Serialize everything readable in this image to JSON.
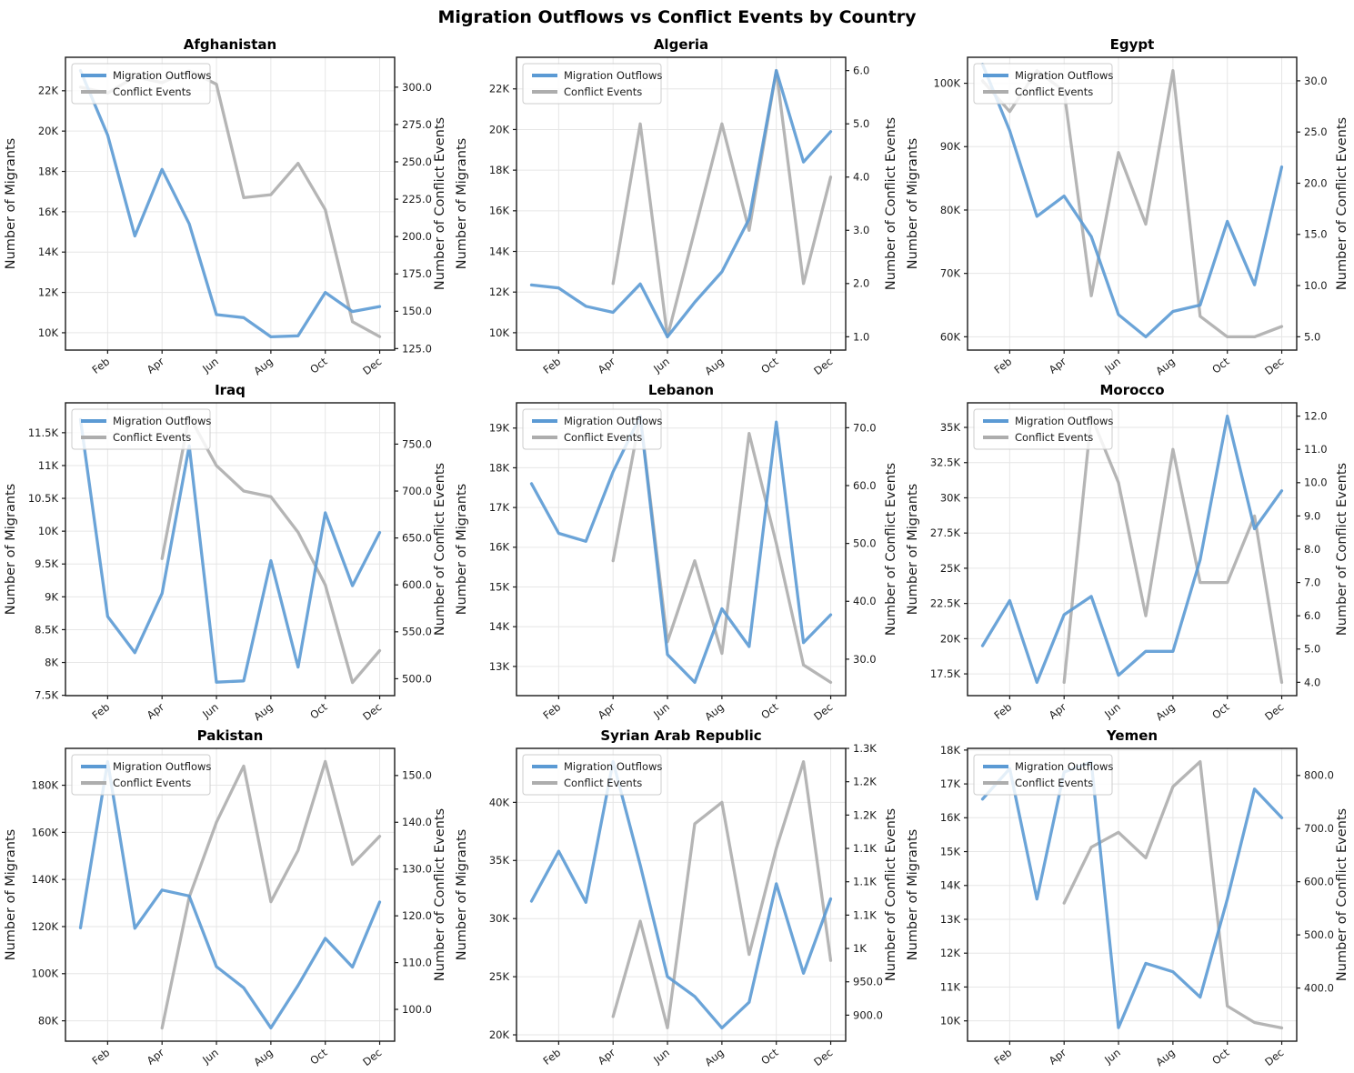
{
  "figure_title": "Migration Outflows vs Conflict Events by Country",
  "legend": {
    "migration_label": "Migration Outflows",
    "conflict_label": "Conflict Events"
  },
  "axis_labels": {
    "left": "Number of Migrants",
    "right": "Number of Conflict Events"
  },
  "x_ticks": {
    "month_indices": [
      1,
      3,
      5,
      7,
      9,
      11
    ],
    "labels": [
      "Feb",
      "Apr",
      "Jun",
      "Aug",
      "Oct",
      "Dec"
    ]
  },
  "colors": {
    "migration": "#5b9ad4",
    "conflict": "#adadad",
    "grid": "#e6e6e6",
    "spine": "#1a1a1a",
    "text": "#1a1a1a",
    "legend_border": "#cccccc"
  },
  "chart_data": [
    {
      "type": "line",
      "title": "Afghanistan",
      "categories": [
        "Jan",
        "Feb",
        "Mar",
        "Apr",
        "May",
        "Jun",
        "Jul",
        "Aug",
        "Sep",
        "Oct",
        "Nov",
        "Dec"
      ],
      "series": [
        {
          "name": "Migration Outflows",
          "values": [
            23000,
            19800,
            14800,
            18100,
            15400,
            10900,
            10750,
            9800,
            9850,
            12000,
            11050,
            11300
          ]
        },
        {
          "name": "Conflict Events",
          "values": [
            300,
            296,
            307,
            303,
            311,
            302,
            226,
            228,
            249,
            218,
            143,
            133
          ]
        }
      ],
      "left_axis": {
        "lim": [
          9140,
          23660
        ],
        "tick_values": [
          10000,
          12000,
          14000,
          16000,
          18000,
          20000,
          22000
        ],
        "tick_labels": [
          "10K",
          "12K",
          "14K",
          "16K",
          "18K",
          "20K",
          "22K"
        ]
      },
      "right_axis": {
        "lim": [
          124,
          320
        ],
        "tick_values": [
          125,
          150,
          175,
          200,
          225,
          250,
          275,
          300
        ],
        "tick_labels": [
          "125.0",
          "150.0",
          "175.0",
          "200.0",
          "225.0",
          "250.0",
          "275.0",
          "300.0"
        ]
      }
    },
    {
      "type": "line",
      "title": "Algeria",
      "categories": [
        "Jan",
        "Feb",
        "Mar",
        "Apr",
        "May",
        "Jun",
        "Jul",
        "Aug",
        "Sep",
        "Oct",
        "Nov",
        "Dec"
      ],
      "series": [
        {
          "name": "Migration Outflows",
          "values": [
            12350,
            12200,
            11300,
            11000,
            12400,
            9800,
            11500,
            13000,
            15600,
            22900,
            18400,
            19900
          ]
        },
        {
          "name": "Conflict Events",
          "values": [
            null,
            null,
            null,
            2,
            5,
            1,
            3,
            5,
            3,
            6,
            2,
            4
          ]
        }
      ],
      "left_axis": {
        "lim": [
          9145,
          23555
        ],
        "tick_values": [
          10000,
          12000,
          14000,
          16000,
          18000,
          20000,
          22000
        ],
        "tick_labels": [
          "10K",
          "12K",
          "14K",
          "16K",
          "18K",
          "20K",
          "22K"
        ]
      },
      "right_axis": {
        "lim": [
          0.75,
          6.25
        ],
        "tick_values": [
          1,
          2,
          3,
          4,
          5,
          6
        ],
        "tick_labels": [
          "1.0",
          "2.0",
          "3.0",
          "4.0",
          "5.0",
          "6.0"
        ]
      }
    },
    {
      "type": "line",
      "title": "Egypt",
      "categories": [
        "Jan",
        "Feb",
        "Mar",
        "Apr",
        "May",
        "Jun",
        "Jul",
        "Aug",
        "Sep",
        "Oct",
        "Nov",
        "Dec"
      ],
      "series": [
        {
          "name": "Migration Outflows",
          "values": [
            103000,
            92500,
            79000,
            82200,
            75800,
            63500,
            60000,
            64000,
            65000,
            78200,
            68200,
            86800
          ]
        },
        {
          "name": "Conflict Events",
          "values": [
            30,
            27,
            31,
            29,
            9,
            23,
            16,
            31,
            7,
            5,
            5,
            6
          ]
        }
      ],
      "left_axis": {
        "lim": [
          57900,
          104100
        ],
        "tick_values": [
          60000,
          70000,
          80000,
          90000,
          100000
        ],
        "tick_labels": [
          "60K",
          "70K",
          "80K",
          "90K",
          "100K"
        ]
      },
      "right_axis": {
        "lim": [
          3.7,
          32.3
        ],
        "tick_values": [
          5,
          10,
          15,
          20,
          25,
          30
        ],
        "tick_labels": [
          "5.0",
          "10.0",
          "15.0",
          "20.0",
          "25.0",
          "30.0"
        ]
      }
    },
    {
      "type": "line",
      "title": "Iraq",
      "categories": [
        "Jan",
        "Feb",
        "Mar",
        "Apr",
        "May",
        "Jun",
        "Jul",
        "Aug",
        "Sep",
        "Oct",
        "Nov",
        "Dec"
      ],
      "series": [
        {
          "name": "Migration Outflows",
          "values": [
            11700,
            8700,
            8150,
            9050,
            11300,
            7700,
            7720,
            9550,
            7930,
            10280,
            9170,
            9980
          ]
        },
        {
          "name": "Conflict Events",
          "values": [
            null,
            null,
            null,
            628,
            780,
            727,
            700,
            694,
            656,
            600,
            496,
            530
          ]
        }
      ],
      "left_axis": {
        "lim": [
          7495,
          11955
        ],
        "tick_values": [
          7500,
          8000,
          8500,
          9000,
          9500,
          10000,
          10500,
          11000,
          11500
        ],
        "tick_labels": [
          "7.5K",
          "8K",
          "8.5K",
          "9K",
          "9.5K",
          "10K",
          "10.5K",
          "11K",
          "11.5K"
        ]
      },
      "right_axis": {
        "lim": [
          482,
          794
        ],
        "tick_values": [
          500,
          550,
          600,
          650,
          700,
          750
        ],
        "tick_labels": [
          "500.0",
          "550.0",
          "600.0",
          "650.0",
          "700.0",
          "750.0"
        ]
      }
    },
    {
      "type": "line",
      "title": "Lebanon",
      "categories": [
        "Jan",
        "Feb",
        "Mar",
        "Apr",
        "May",
        "Jun",
        "Jul",
        "Aug",
        "Sep",
        "Oct",
        "Nov",
        "Dec"
      ],
      "series": [
        {
          "name": "Migration Outflows",
          "values": [
            17600,
            16350,
            16150,
            17900,
            19300,
            13300,
            12600,
            14450,
            13500,
            19150,
            13600,
            14300
          ]
        },
        {
          "name": "Conflict Events",
          "values": [
            null,
            null,
            null,
            47,
            72,
            33,
            47,
            31,
            69,
            50,
            29,
            26
          ]
        }
      ],
      "left_axis": {
        "lim": [
          12265,
          19635
        ],
        "tick_values": [
          13000,
          14000,
          15000,
          16000,
          17000,
          18000,
          19000
        ],
        "tick_labels": [
          "13K",
          "14K",
          "15K",
          "16K",
          "17K",
          "18K",
          "19K"
        ]
      },
      "right_axis": {
        "lim": [
          23.7,
          74.3
        ],
        "tick_values": [
          30,
          40,
          50,
          60,
          70
        ],
        "tick_labels": [
          "30.0",
          "40.0",
          "50.0",
          "60.0",
          "70.0"
        ]
      }
    },
    {
      "type": "line",
      "title": "Morocco",
      "categories": [
        "Jan",
        "Feb",
        "Mar",
        "Apr",
        "May",
        "Jun",
        "Jul",
        "Aug",
        "Sep",
        "Oct",
        "Nov",
        "Dec"
      ],
      "series": [
        {
          "name": "Migration Outflows",
          "values": [
            19500,
            22700,
            16900,
            21700,
            23000,
            17400,
            19100,
            19100,
            25600,
            35800,
            27800,
            30500
          ]
        },
        {
          "name": "Conflict Events",
          "values": [
            null,
            null,
            null,
            4,
            12,
            10,
            6,
            11,
            7,
            7,
            9,
            4
          ]
        }
      ],
      "left_axis": {
        "lim": [
          15955,
          36745
        ],
        "tick_values": [
          17500,
          20000,
          22500,
          25000,
          27500,
          30000,
          32500,
          35000
        ],
        "tick_labels": [
          "17.5K",
          "20K",
          "22.5K",
          "25K",
          "27.5K",
          "30K",
          "32.5K",
          "35K"
        ]
      },
      "right_axis": {
        "lim": [
          3.6,
          12.4
        ],
        "tick_values": [
          4,
          5,
          6,
          7,
          8,
          9,
          10,
          11,
          12
        ],
        "tick_labels": [
          "4.0",
          "5.0",
          "6.0",
          "7.0",
          "8.0",
          "9.0",
          "10.0",
          "11.0",
          "12.0"
        ]
      }
    },
    {
      "type": "line",
      "title": "Pakistan",
      "categories": [
        "Jan",
        "Feb",
        "Mar",
        "Apr",
        "May",
        "Jun",
        "Jul",
        "Aug",
        "Sep",
        "Oct",
        "Nov",
        "Dec"
      ],
      "series": [
        {
          "name": "Migration Outflows",
          "values": [
            119500,
            190000,
            119300,
            135500,
            133000,
            103000,
            94000,
            77000,
            95000,
            115000,
            102800,
            130400
          ]
        },
        {
          "name": "Conflict Events",
          "values": [
            null,
            null,
            null,
            96,
            124,
            140,
            152,
            123,
            134,
            153,
            131,
            137
          ]
        }
      ],
      "left_axis": {
        "lim": [
          71350,
          195650
        ],
        "tick_values": [
          80000,
          100000,
          120000,
          140000,
          160000,
          180000
        ],
        "tick_labels": [
          "80K",
          "100K",
          "120K",
          "140K",
          "160K",
          "180K"
        ]
      },
      "right_axis": {
        "lim": [
          93.2,
          155.8
        ],
        "tick_values": [
          100,
          110,
          120,
          130,
          140,
          150
        ],
        "tick_labels": [
          "100.0",
          "110.0",
          "120.0",
          "130.0",
          "140.0",
          "150.0"
        ]
      }
    },
    {
      "type": "line",
      "title": "Syrian Arab Republic",
      "categories": [
        "Jan",
        "Feb",
        "Mar",
        "Apr",
        "May",
        "Jun",
        "Jul",
        "Aug",
        "Sep",
        "Oct",
        "Nov",
        "Dec"
      ],
      "series": [
        {
          "name": "Migration Outflows",
          "values": [
            31500,
            35800,
            31400,
            43500,
            34600,
            25000,
            23300,
            20600,
            22800,
            33000,
            25300,
            31700
          ]
        },
        {
          "name": "Conflict Events",
          "values": [
            null,
            null,
            null,
            898,
            1041,
            881,
            1187,
            1219,
            991,
            1150,
            1280,
            982
          ]
        }
      ],
      "left_axis": {
        "lim": [
          19455,
          44645
        ],
        "tick_values": [
          20000,
          25000,
          30000,
          35000,
          40000
        ],
        "tick_labels": [
          "20K",
          "25K",
          "30K",
          "35K",
          "40K"
        ]
      },
      "right_axis": {
        "lim": [
          861,
          1300
        ],
        "tick_values": [
          900,
          950,
          1000,
          1050,
          1100,
          1150,
          1200,
          1250,
          1300
        ],
        "tick_labels": [
          "900.0",
          "950.0",
          "1K",
          "1.1K",
          "1.1K",
          "1.1K",
          "1.2K",
          "1.2K",
          "1.3K"
        ]
      }
    },
    {
      "type": "line",
      "title": "Yemen",
      "categories": [
        "Jan",
        "Feb",
        "Mar",
        "Apr",
        "May",
        "Jun",
        "Jul",
        "Aug",
        "Sep",
        "Oct",
        "Nov",
        "Dec"
      ],
      "series": [
        {
          "name": "Migration Outflows",
          "values": [
            16550,
            17450,
            13600,
            17350,
            17650,
            9800,
            11700,
            11450,
            10700,
            13600,
            16850,
            16000
          ]
        },
        {
          "name": "Conflict Events",
          "values": [
            null,
            null,
            null,
            560,
            665,
            693,
            645,
            779,
            826,
            366,
            335,
            325
          ]
        }
      ],
      "left_axis": {
        "lim": [
          9400,
          18050
        ],
        "tick_values": [
          10000,
          11000,
          12000,
          13000,
          14000,
          15000,
          16000,
          17000,
          18000
        ],
        "tick_labels": [
          "10K",
          "11K",
          "12K",
          "13K",
          "14K",
          "15K",
          "16K",
          "17K",
          "18K"
        ]
      },
      "right_axis": {
        "lim": [
          300,
          851
        ],
        "tick_values": [
          400,
          500,
          600,
          700,
          800
        ],
        "tick_labels": [
          "400.0",
          "500.0",
          "600.0",
          "700.0",
          "800.0"
        ]
      }
    }
  ]
}
